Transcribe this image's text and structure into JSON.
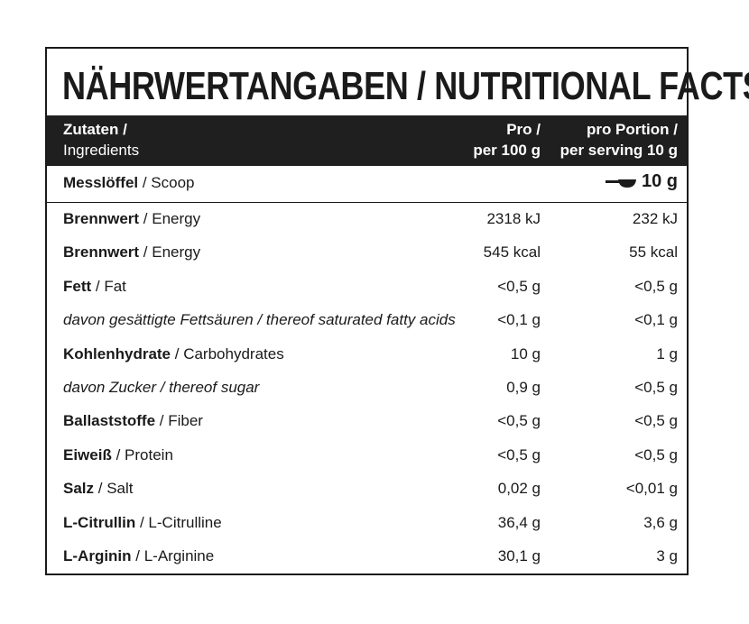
{
  "title": "NÄHRWERTANGABEN / NUTRITIONAL FACTS:",
  "header": {
    "col1_line1": "Zutaten /",
    "col1_line2": "Ingredients",
    "col2_line1": "Pro /",
    "col2_line2": "per 100 g",
    "col3_line1": "pro Portion /",
    "col3_line2": "per serving 10 g"
  },
  "scoop": {
    "label_de": "Messlöffel",
    "label_en": " / Scoop",
    "value": "10 g",
    "icon": "scoop-icon"
  },
  "rows": [
    {
      "de": "Brennwert",
      "en": " / Energy",
      "per100": "2318 kJ",
      "serving": "232 kJ",
      "italic": false
    },
    {
      "de": "Brennwert",
      "en": " / Energy",
      "per100": "545 kcal",
      "serving": "55 kcal",
      "italic": false
    },
    {
      "de": "Fett",
      "en": " / Fat",
      "per100": "<0,5 g",
      "serving": "<0,5 g",
      "italic": false
    },
    {
      "de": "",
      "en": "davon gesättigte Fettsäuren / thereof saturated fatty acids",
      "per100": "<0,1 g",
      "serving": "<0,1 g",
      "italic": true
    },
    {
      "de": "Kohlenhydrate",
      "en": " / Carbohydrates",
      "per100": "10 g",
      "serving": "1 g",
      "italic": false
    },
    {
      "de": "",
      "en": "davon Zucker / thereof sugar",
      "per100": "0,9 g",
      "serving": "<0,5 g",
      "italic": true
    },
    {
      "de": "Ballaststoffe",
      "en": " / Fiber",
      "per100": "<0,5 g",
      "serving": "<0,5 g",
      "italic": false
    },
    {
      "de": "Eiweiß",
      "en": " / Protein",
      "per100": "<0,5 g",
      "serving": "<0,5 g",
      "italic": false
    },
    {
      "de": "Salz",
      "en": " / Salt",
      "per100": "0,02 g",
      "serving": "<0,01 g",
      "italic": false
    },
    {
      "de": "L-Citrullin",
      "en": " / L-Citrulline",
      "per100": "36,4 g",
      "serving": "3,6 g",
      "italic": false
    },
    {
      "de": "L-Arginin",
      "en": " / L-Arginine",
      "per100": "30,1 g",
      "serving": "3 g",
      "italic": false
    }
  ]
}
